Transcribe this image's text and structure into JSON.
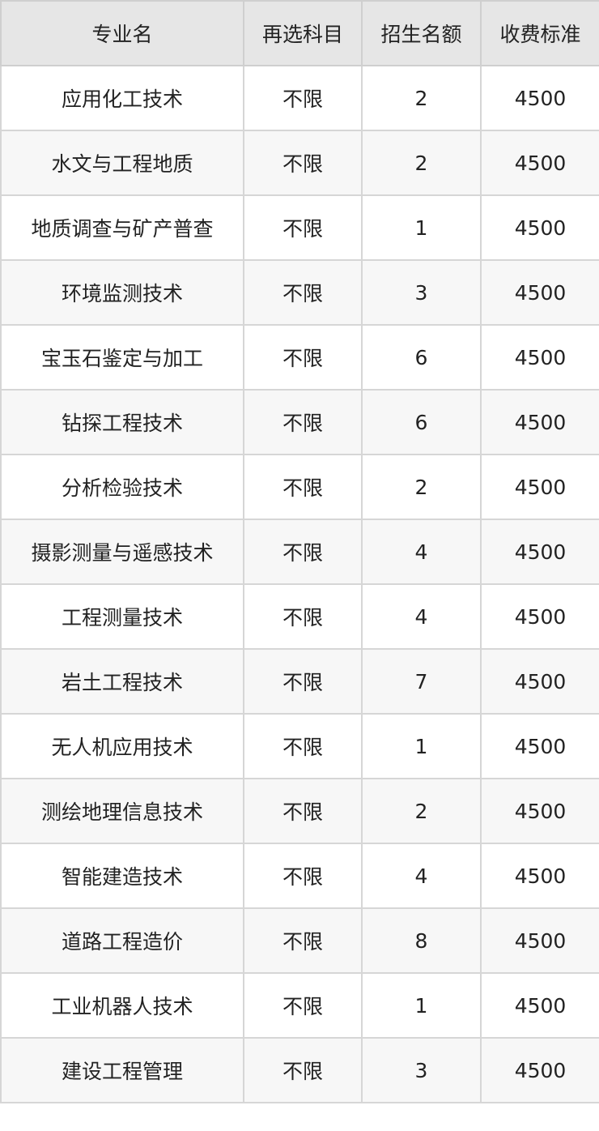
{
  "headers": [
    "专业名",
    "再选科目",
    "招生名额",
    "收费标准"
  ],
  "rows": [
    [
      "应用化工技术",
      "不限",
      "2",
      "4500"
    ],
    [
      "水文与工程地质",
      "不限",
      "2",
      "4500"
    ],
    [
      "地质调查与矿产普查",
      "不限",
      "1",
      "4500"
    ],
    [
      "环境监测技术",
      "不限",
      "3",
      "4500"
    ],
    [
      "宝玉石鉴定与加工",
      "不限",
      "6",
      "4500"
    ],
    [
      "钻探工程技术",
      "不限",
      "6",
      "4500"
    ],
    [
      "分析检验技术",
      "不限",
      "2",
      "4500"
    ],
    [
      "摄影测量与遥感技术",
      "不限",
      "4",
      "4500"
    ],
    [
      "工程测量技术",
      "不限",
      "4",
      "4500"
    ],
    [
      "岩土工程技术",
      "不限",
      "7",
      "4500"
    ],
    [
      "无人机应用技术",
      "不限",
      "1",
      "4500"
    ],
    [
      "测绘地理信息技术",
      "不限",
      "2",
      "4500"
    ],
    [
      "智能建造技术",
      "不限",
      "4",
      "4500"
    ],
    [
      "道路工程造价",
      "不限",
      "8",
      "4500"
    ],
    [
      "工业机器人技术",
      "不限",
      "1",
      "4500"
    ],
    [
      "建设工程管理",
      "不限",
      "3",
      "4500"
    ]
  ]
}
